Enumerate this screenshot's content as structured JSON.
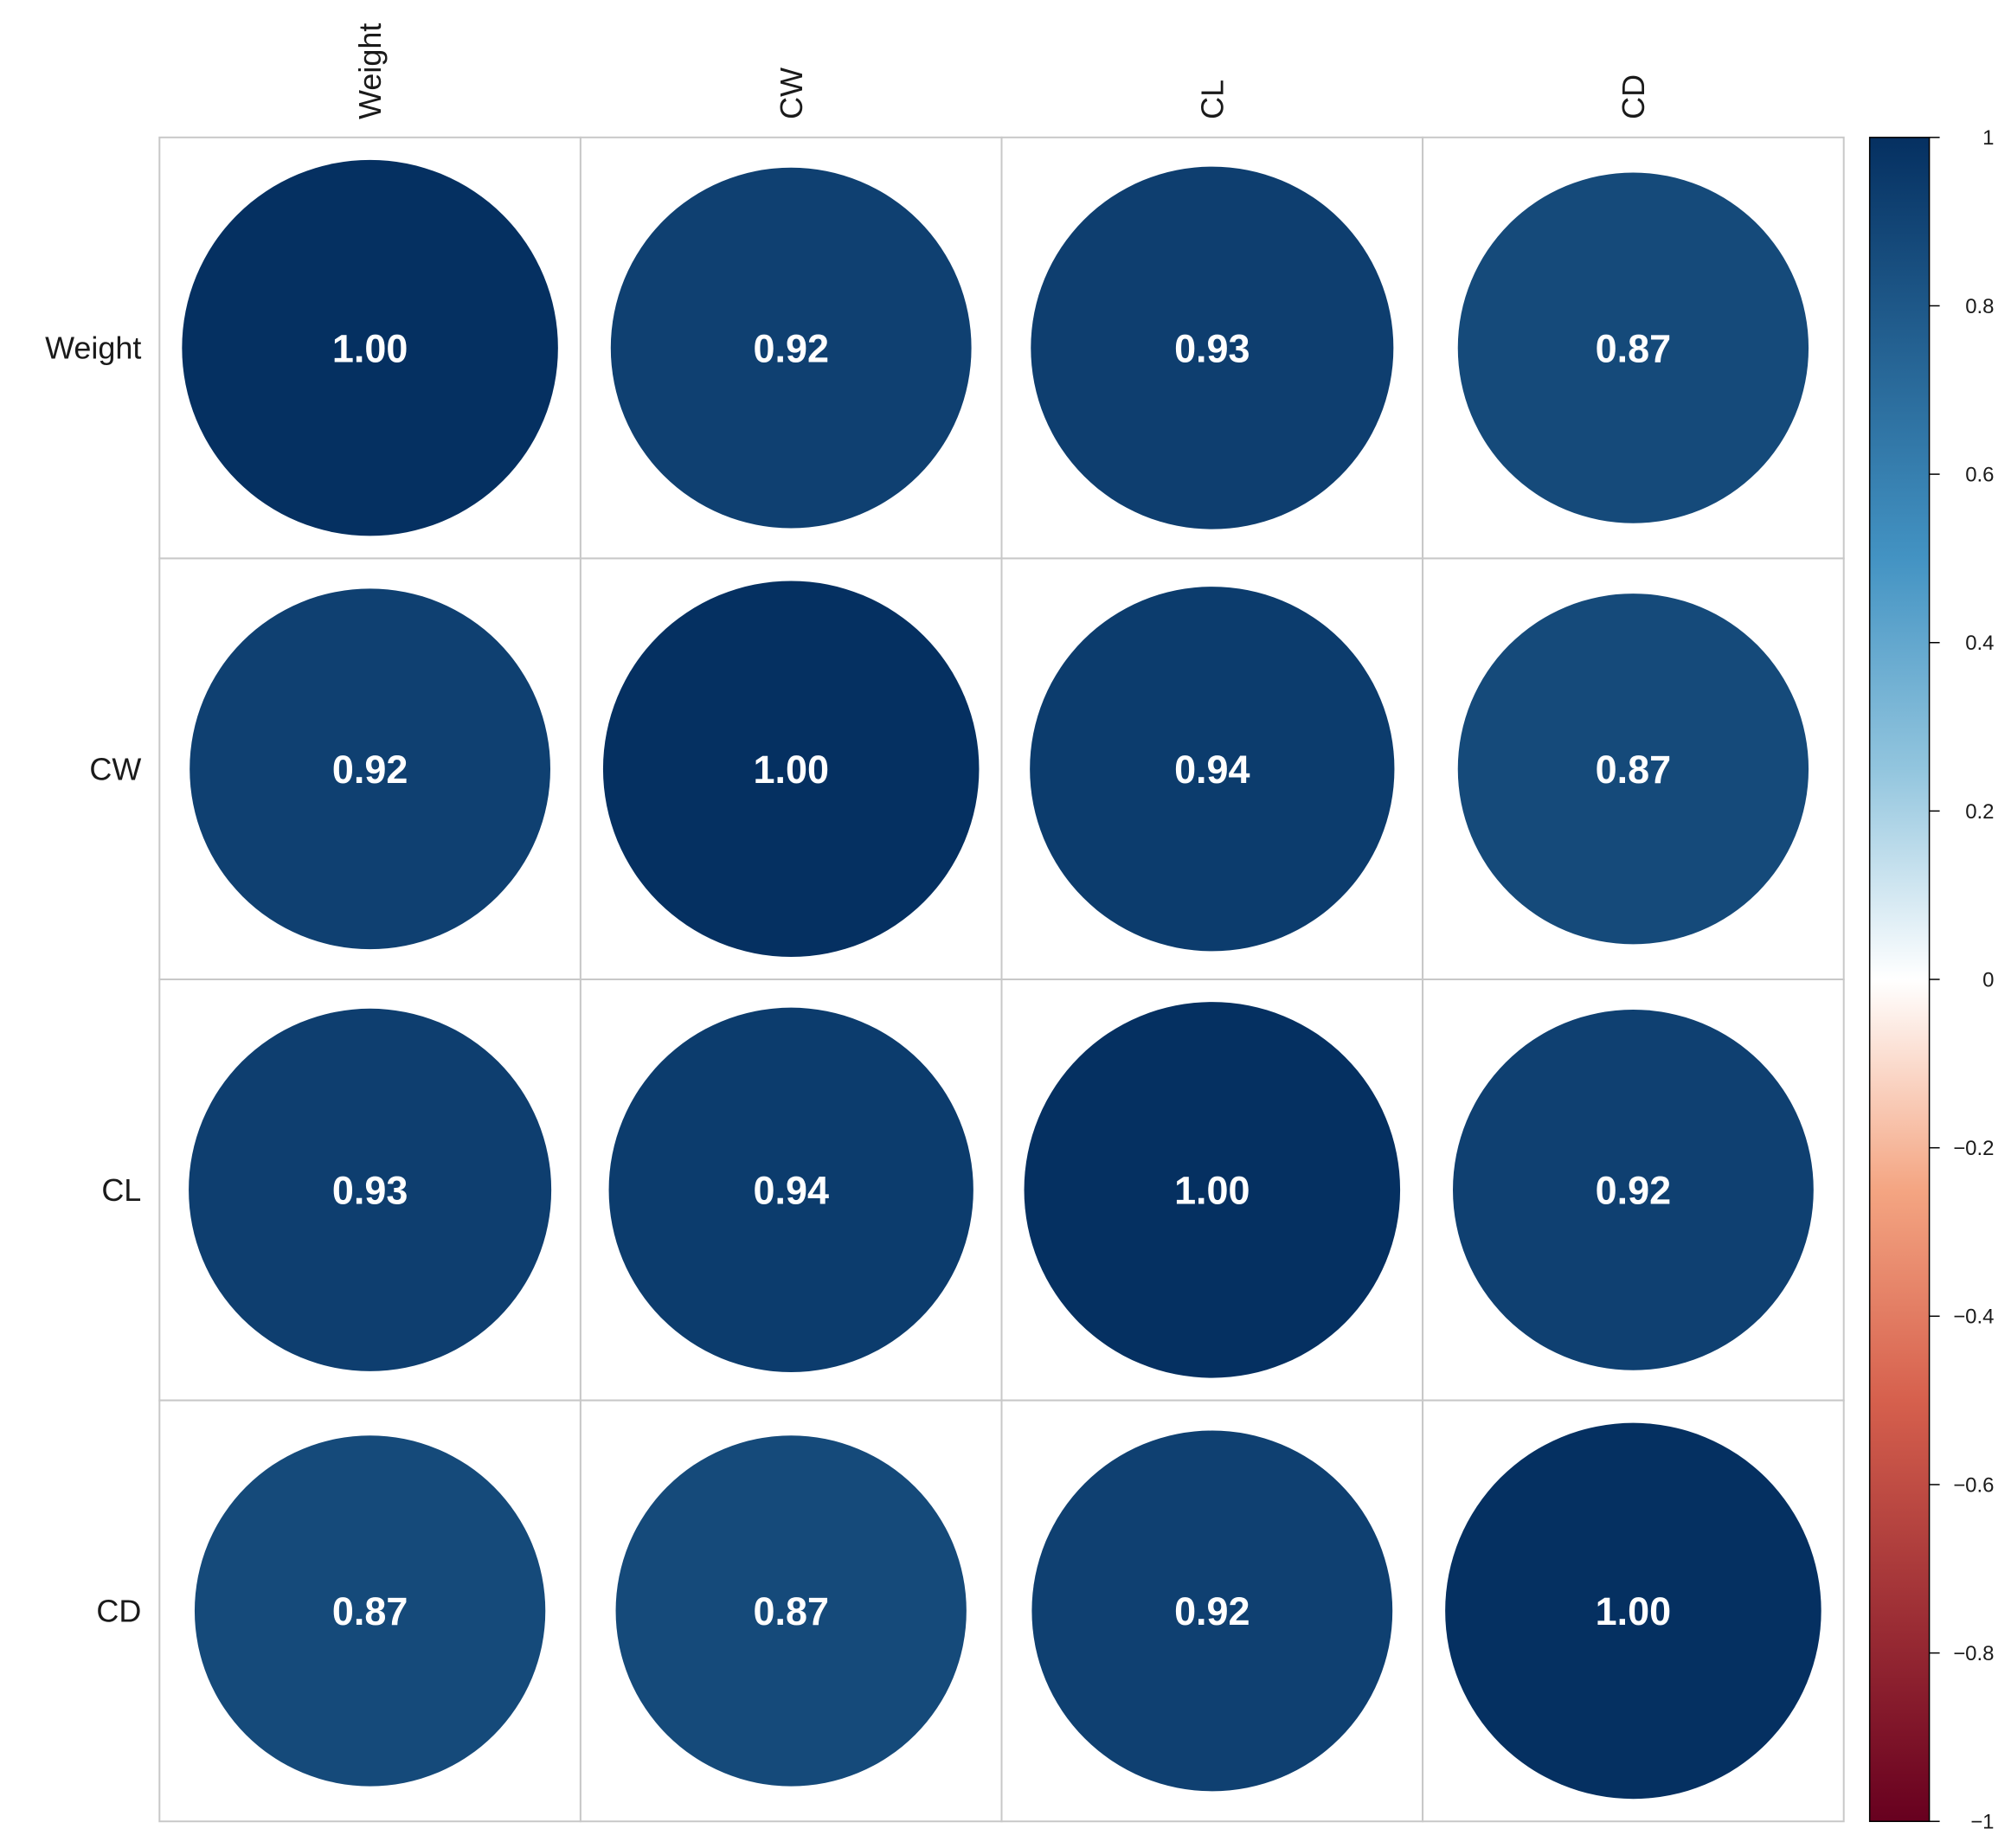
{
  "chart_data": {
    "type": "heatmap",
    "subtype": "correlation-circles",
    "variables": [
      "Weight",
      "CW",
      "CL",
      "CD"
    ],
    "matrix": [
      [
        1.0,
        0.92,
        0.93,
        0.87
      ],
      [
        0.92,
        1.0,
        0.94,
        0.87
      ],
      [
        0.93,
        0.94,
        1.0,
        0.92
      ],
      [
        0.87,
        0.87,
        0.92,
        1.0
      ]
    ],
    "value_labels": [
      [
        "1.00",
        "0.92",
        "0.93",
        "0.87"
      ],
      [
        "0.92",
        "1.00",
        "0.94",
        "0.87"
      ],
      [
        "0.93",
        "0.94",
        "1.00",
        "0.92"
      ],
      [
        "0.87",
        "0.87",
        "0.92",
        "1.00"
      ]
    ],
    "column_labels_position": "top",
    "column_labels_rotation": "vertical",
    "row_labels_position": "left",
    "grid": true,
    "colorbar": {
      "position": "right",
      "range": [
        -1,
        1
      ],
      "ticks": [
        1,
        0.8,
        0.6,
        0.4,
        0.2,
        0,
        -0.2,
        -0.4,
        -0.6,
        -0.8,
        -1
      ],
      "tick_labels": [
        "1",
        "0.8",
        "0.6",
        "0.4",
        "0.2",
        "0",
        "−0.2",
        "−0.4",
        "−0.6",
        "−0.8",
        "−1"
      ],
      "colors": {
        "negative_end": "#67001F",
        "negative_mid": "#D6604D",
        "negative_light": "#F4A582",
        "neutral": "#FFFFFF",
        "positive_light": "#92C5DE",
        "positive_mid": "#4393C3",
        "positive_end": "#053061"
      }
    },
    "grid_color": "#c8c8c8",
    "value_label_color": "#FFFFFF"
  }
}
